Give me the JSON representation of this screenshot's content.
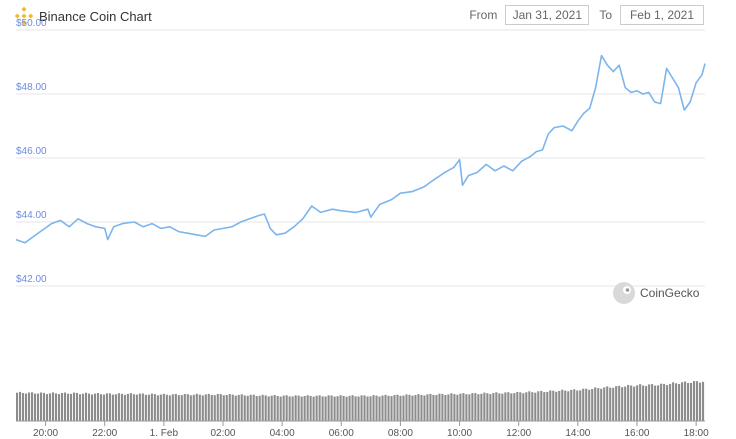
{
  "header": {
    "title": "Binance Coin Chart",
    "icon": "binance-coin-icon",
    "from_label": "From",
    "from_value": "Jan 31, 2021",
    "to_label": "To",
    "to_value": "Feb 1, 2021"
  },
  "watermark": {
    "text": "CoinGecko",
    "icon": "gecko-icon"
  },
  "colors": {
    "line": "#7cb5ec",
    "volume": "#8c8c8c",
    "grid": "#e6e6e6",
    "brand": "#f3ba2f"
  },
  "chart_data": {
    "type": "line",
    "title": "",
    "xlabel": "",
    "ylabel": "",
    "ylim": [
      40.0,
      50.0
    ],
    "ytick_labels": [
      "$42.00",
      "$44.00",
      "$46.00",
      "$48.00",
      "$50.00"
    ],
    "yticks": [
      42,
      44,
      46,
      48,
      50
    ],
    "xtick_labels": [
      "20:00",
      "22:00",
      "1. Feb",
      "02:00",
      "04:00",
      "06:00",
      "08:00",
      "10:00",
      "12:00",
      "14:00",
      "16:00",
      "18:00"
    ],
    "xticks": [
      20,
      22,
      24,
      26,
      28,
      30,
      32,
      34,
      36,
      38,
      40,
      42
    ],
    "xlim": [
      19.0,
      42.3
    ],
    "grid": true,
    "series": [
      {
        "values": [
          [
            19.0,
            43.45
          ],
          [
            19.3,
            43.35
          ],
          [
            19.6,
            43.55
          ],
          [
            19.9,
            43.75
          ],
          [
            20.2,
            43.95
          ],
          [
            20.5,
            44.05
          ],
          [
            20.8,
            43.85
          ],
          [
            21.1,
            44.1
          ],
          [
            21.4,
            43.95
          ],
          [
            21.7,
            43.85
          ],
          [
            22.0,
            43.8
          ],
          [
            22.1,
            43.45
          ],
          [
            22.3,
            43.85
          ],
          [
            22.6,
            43.95
          ],
          [
            23.0,
            44.0
          ],
          [
            23.3,
            43.85
          ],
          [
            23.6,
            43.95
          ],
          [
            23.9,
            43.8
          ],
          [
            24.2,
            43.85
          ],
          [
            24.5,
            43.7
          ],
          [
            24.8,
            43.65
          ],
          [
            25.1,
            43.6
          ],
          [
            25.4,
            43.55
          ],
          [
            25.7,
            43.75
          ],
          [
            26.0,
            43.8
          ],
          [
            26.3,
            43.85
          ],
          [
            26.6,
            44.0
          ],
          [
            26.9,
            44.1
          ],
          [
            27.2,
            44.2
          ],
          [
            27.4,
            44.25
          ],
          [
            27.6,
            43.8
          ],
          [
            27.8,
            43.6
          ],
          [
            28.1,
            43.65
          ],
          [
            28.4,
            43.85
          ],
          [
            28.7,
            44.1
          ],
          [
            29.0,
            44.5
          ],
          [
            29.3,
            44.3
          ],
          [
            29.7,
            44.4
          ],
          [
            30.0,
            44.35
          ],
          [
            30.5,
            44.3
          ],
          [
            30.9,
            44.4
          ],
          [
            31.0,
            44.15
          ],
          [
            31.3,
            44.55
          ],
          [
            31.7,
            44.7
          ],
          [
            32.0,
            44.9
          ],
          [
            32.4,
            44.95
          ],
          [
            32.8,
            45.1
          ],
          [
            33.1,
            45.3
          ],
          [
            33.5,
            45.55
          ],
          [
            33.8,
            45.7
          ],
          [
            34.0,
            45.95
          ],
          [
            34.1,
            45.15
          ],
          [
            34.3,
            45.45
          ],
          [
            34.6,
            45.55
          ],
          [
            34.9,
            45.8
          ],
          [
            35.2,
            45.6
          ],
          [
            35.5,
            45.75
          ],
          [
            35.8,
            45.6
          ],
          [
            36.1,
            45.9
          ],
          [
            36.4,
            46.05
          ],
          [
            36.6,
            46.2
          ],
          [
            36.8,
            46.25
          ],
          [
            37.0,
            46.75
          ],
          [
            37.2,
            46.95
          ],
          [
            37.5,
            47.0
          ],
          [
            37.8,
            46.85
          ],
          [
            38.0,
            47.15
          ],
          [
            38.2,
            47.4
          ],
          [
            38.4,
            47.55
          ],
          [
            38.6,
            48.2
          ],
          [
            38.8,
            49.2
          ],
          [
            39.0,
            48.9
          ],
          [
            39.2,
            48.7
          ],
          [
            39.4,
            48.9
          ],
          [
            39.6,
            48.2
          ],
          [
            39.8,
            48.05
          ],
          [
            40.0,
            48.1
          ],
          [
            40.2,
            48.0
          ],
          [
            40.4,
            48.05
          ],
          [
            40.6,
            47.75
          ],
          [
            40.8,
            47.7
          ],
          [
            41.0,
            48.8
          ],
          [
            41.2,
            48.5
          ],
          [
            41.4,
            48.2
          ],
          [
            41.6,
            47.5
          ],
          [
            41.8,
            47.75
          ],
          [
            42.0,
            48.35
          ],
          [
            42.2,
            48.6
          ],
          [
            42.3,
            48.95
          ]
        ]
      }
    ],
    "volume": {
      "ylim": [
        0,
        100
      ],
      "values": [
        [
          19.0,
          43
        ],
        [
          20.0,
          42
        ],
        [
          21.0,
          42
        ],
        [
          22.0,
          41
        ],
        [
          23.0,
          41
        ],
        [
          24.0,
          40
        ],
        [
          25.0,
          40
        ],
        [
          26.0,
          40
        ],
        [
          27.0,
          39
        ],
        [
          28.0,
          38
        ],
        [
          29.0,
          38
        ],
        [
          30.0,
          38
        ],
        [
          31.0,
          38
        ],
        [
          32.0,
          39
        ],
        [
          33.0,
          40
        ],
        [
          34.0,
          41
        ],
        [
          35.0,
          42
        ],
        [
          36.0,
          43
        ],
        [
          37.0,
          45
        ],
        [
          38.0,
          47
        ],
        [
          39.0,
          51
        ],
        [
          40.0,
          54
        ],
        [
          40.8,
          55
        ],
        [
          41.5,
          58
        ],
        [
          42.3,
          60
        ]
      ]
    }
  }
}
